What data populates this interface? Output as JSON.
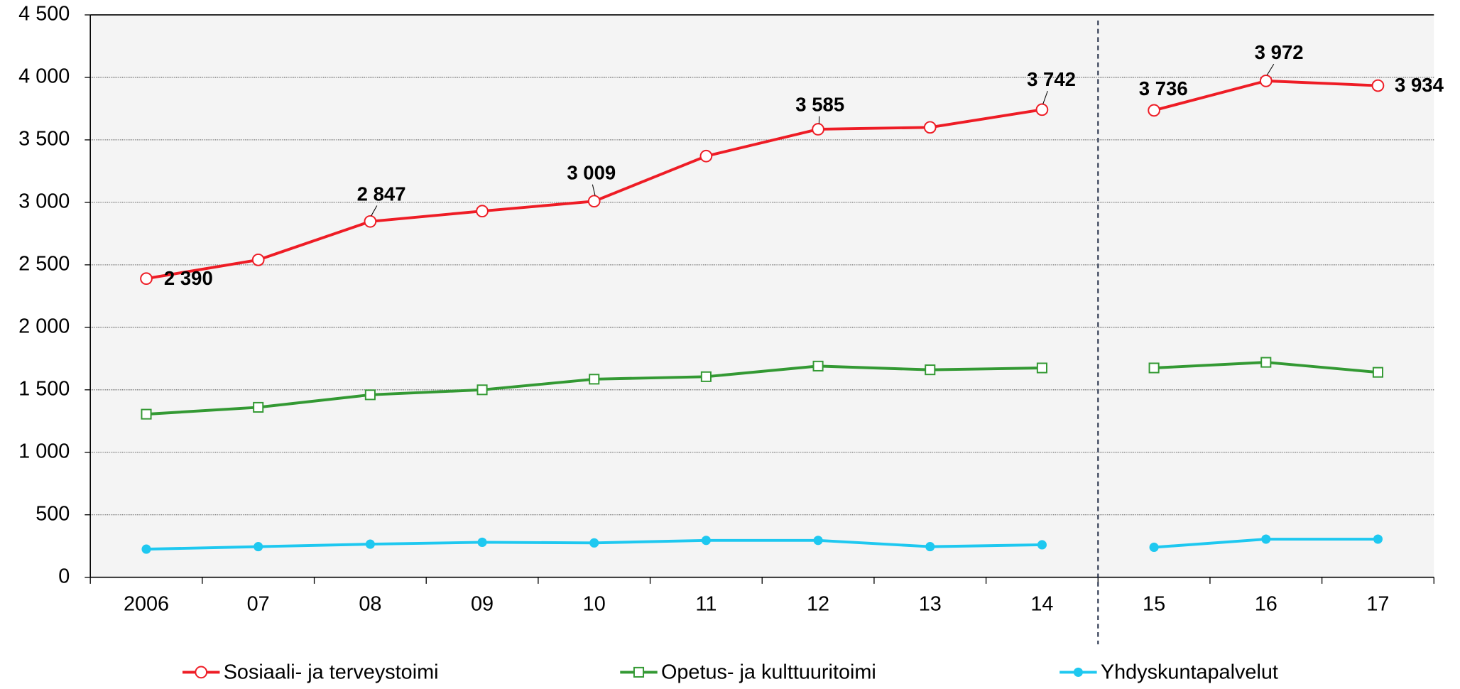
{
  "chart_data": {
    "type": "line",
    "categories": [
      "2006",
      "07",
      "08",
      "09",
      "10",
      "11",
      "12",
      "13",
      "14",
      "15",
      "16",
      "17"
    ],
    "series": [
      {
        "name": "Sosiaali- ja terveystoimi",
        "color": "#ee1c25",
        "marker": "circle",
        "values": [
          2390,
          2540,
          2847,
          2930,
          3009,
          3370,
          3585,
          3600,
          3742,
          3736,
          3972,
          3934
        ],
        "value_labels": [
          "2 390",
          null,
          "2 847",
          null,
          "3 009",
          null,
          "3 585",
          null,
          "3 742",
          "3 736",
          "3 972",
          "3 934"
        ]
      },
      {
        "name": "Opetus- ja kulttuuritoimi",
        "color": "#339933",
        "marker": "square",
        "values": [
          1305,
          1360,
          1460,
          1500,
          1585,
          1605,
          1690,
          1660,
          1675,
          1675,
          1720,
          1640
        ]
      },
      {
        "name": "Yhdyskuntapalvelut",
        "color": "#1ec8f0",
        "marker": "dot",
        "values": [
          225,
          245,
          265,
          280,
          275,
          295,
          295,
          245,
          260,
          240,
          305,
          305
        ]
      }
    ],
    "ylim": [
      0,
      4500
    ],
    "yticks": [
      0,
      500,
      {
        "value": 1000,
        "label": "1 000"
      },
      {
        "value": 1500,
        "label": "1 500"
      },
      {
        "value": 2000,
        "label": "2 000"
      },
      {
        "value": 2500,
        "label": "2 500"
      },
      {
        "value": 3000,
        "label": "3 000"
      },
      {
        "value": 3500,
        "label": "3 500"
      },
      {
        "value": 4000,
        "label": "4 000"
      },
      {
        "value": 4500,
        "label": "4 500"
      }
    ],
    "grid": true,
    "break_after_index": 8,
    "legend": "bottom"
  }
}
